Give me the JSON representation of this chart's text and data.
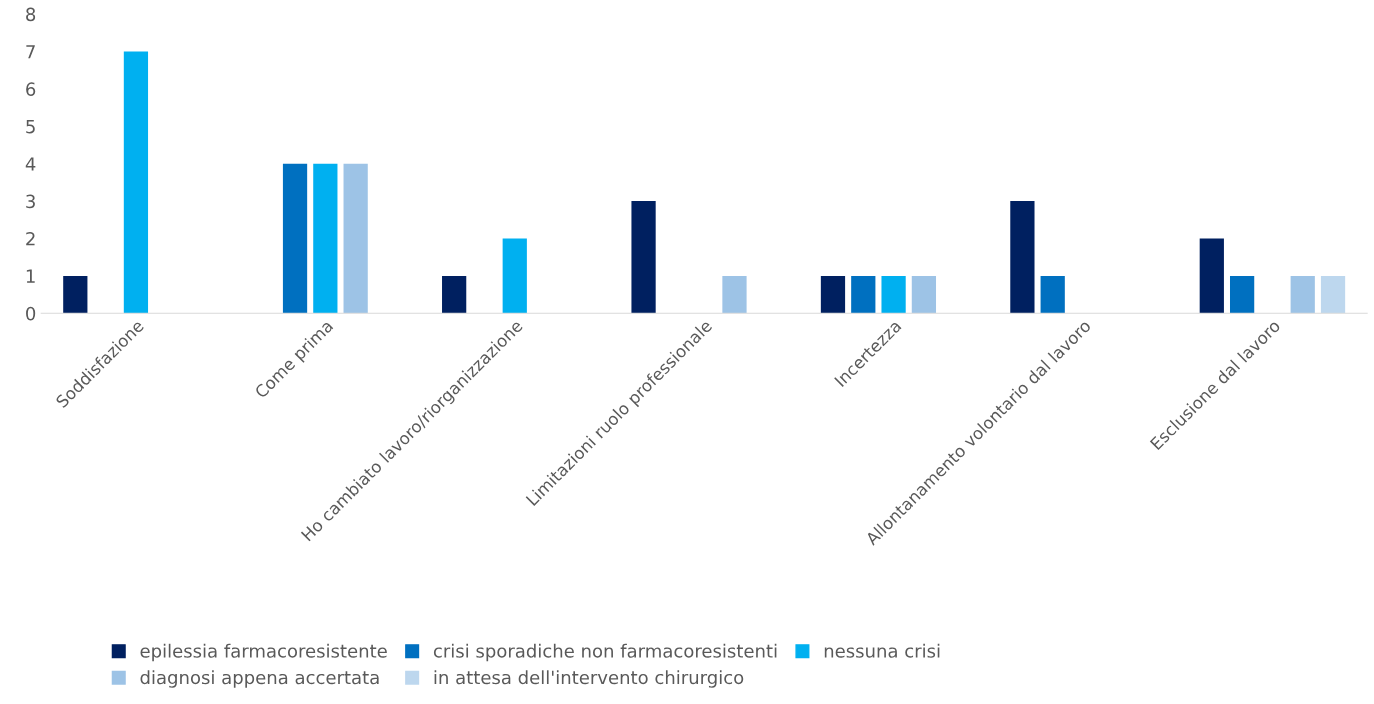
{
  "chart_data": {
    "type": "bar",
    "categories": [
      "Soddisfazione",
      "Come prima",
      "Ho cambiato lavoro/riorganizzazione",
      "Limitazioni ruolo professionale",
      "Incertezza",
      "Allontanamento volontario dal lavoro",
      "Esclusione dal lavoro"
    ],
    "series": [
      {
        "name": "epilessia farmacoresistente",
        "color": "#002060",
        "values": [
          1,
          0,
          1,
          3,
          1,
          3,
          2
        ]
      },
      {
        "name": "crisi sporadiche non farmacoresistenti",
        "color": "#0070c0",
        "values": [
          0,
          4,
          0,
          0,
          1,
          1,
          1
        ]
      },
      {
        "name": "nessuna crisi",
        "color": "#00b0f0",
        "values": [
          7,
          4,
          2,
          0,
          1,
          0,
          0
        ]
      },
      {
        "name": "diagnosi appena accertata",
        "color": "#9dc3e6",
        "values": [
          0,
          4,
          0,
          1,
          1,
          0,
          1
        ]
      },
      {
        "name": "in attesa dell'intervento chirurgico",
        "color": "#bdd7ee",
        "values": [
          0,
          0,
          0,
          0,
          0,
          0,
          1
        ]
      }
    ],
    "ylim": [
      0,
      8
    ],
    "yticks": [
      0,
      1,
      2,
      3,
      4,
      5,
      6,
      7,
      8
    ],
    "grid": false,
    "legend": "bottom"
  }
}
